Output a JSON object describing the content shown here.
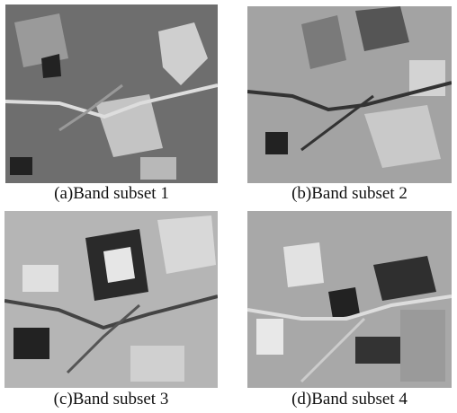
{
  "panels": [
    {
      "caption": "(a)Band subset 1"
    },
    {
      "caption": "(b)Band subset 2"
    },
    {
      "caption": "(c)Band subset 3"
    },
    {
      "caption": "(d)Band subset 4"
    }
  ]
}
